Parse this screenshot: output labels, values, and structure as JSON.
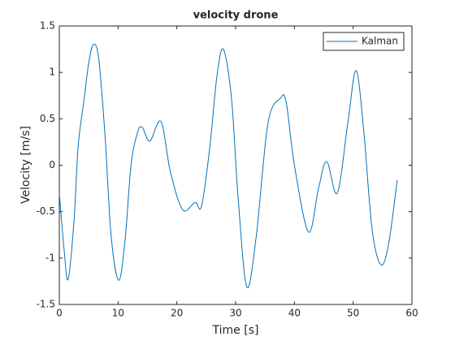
{
  "chart_data": {
    "type": "line",
    "title": "velocity drone",
    "xlabel": "Time [s]",
    "ylabel": "Velocity [m/s]",
    "xlim": [
      0,
      60
    ],
    "xticks": [
      0,
      10,
      20,
      30,
      40,
      50,
      60
    ],
    "ylim": [
      -1.5,
      1.5
    ],
    "yticks": [
      -1.5,
      -1,
      -0.5,
      0,
      0.5,
      1,
      1.5
    ],
    "legend": "upper right",
    "x": [
      0,
      0.8,
      1.5,
      2.5,
      3.2,
      4.2,
      5,
      5.8,
      6.7,
      7.8,
      8.8,
      10.1,
      11.2,
      12.2,
      13.3,
      14.1,
      15.4,
      17.3,
      18.9,
      21,
      23.1,
      24.2,
      25.6,
      26.8,
      27.9,
      29.3,
      30.4,
      31.9,
      33.5,
      35.5,
      37.6,
      38.6,
      40,
      42.4,
      44.1,
      45.5,
      47.3,
      49.1,
      50.5,
      51.8,
      53.2,
      54.7,
      56,
      57.5
    ],
    "series": [
      {
        "name": "Kalman",
        "color": "#0072bd",
        "values": [
          -0.3,
          -0.9,
          -1.23,
          -0.6,
          0.2,
          0.7,
          1.1,
          1.3,
          1.15,
          0.3,
          -0.75,
          -1.24,
          -0.8,
          0,
          0.35,
          0.41,
          0.26,
          0.47,
          -0.07,
          -0.48,
          -0.4,
          -0.44,
          0.19,
          0.95,
          1.25,
          0.72,
          -0.33,
          -1.31,
          -0.77,
          0.45,
          0.72,
          0.68,
          0,
          -0.72,
          -0.25,
          0.04,
          -0.3,
          0.46,
          1.02,
          0.37,
          -0.68,
          -1.07,
          -0.86,
          -0.16
        ]
      }
    ]
  }
}
